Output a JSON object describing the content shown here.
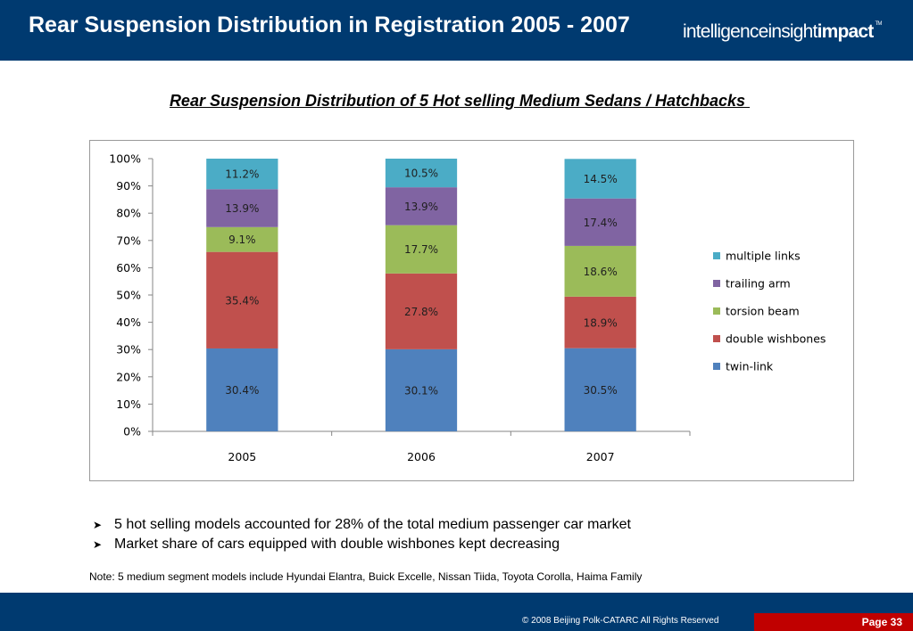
{
  "header": {
    "title": "Rear Suspension Distribution in Registration 2005 - 2007",
    "logo": {
      "part1": "intelligence",
      "part2": "insight",
      "part3": "impact",
      "tm": "TM"
    }
  },
  "colors": {
    "header_bg": "#003a70",
    "page_box": "#c00000",
    "twin_link": "#4f81bd",
    "double_wishbones": "#c0504d",
    "torsion_beam": "#9bbb59",
    "trailing_arm": "#8064a2",
    "multiple_links": "#4bacc6"
  },
  "chart_data": {
    "type": "bar",
    "stacked": true,
    "title": "Rear Suspension Distribution of 5 Hot selling Medium Sedans / Hatchbacks ",
    "categories": [
      "2005",
      "2006",
      "2007"
    ],
    "series": [
      {
        "name": "twin-link",
        "values": [
          30.4,
          30.1,
          30.5
        ],
        "labels": [
          "30.4%",
          "30.1%",
          "30.5%"
        ],
        "color": "#4f81bd"
      },
      {
        "name": "double wishbones",
        "values": [
          35.4,
          27.8,
          18.9
        ],
        "labels": [
          "35.4%",
          "27.8%",
          "18.9%"
        ],
        "color": "#c0504d"
      },
      {
        "name": "torsion beam",
        "values": [
          9.1,
          17.7,
          18.6
        ],
        "labels": [
          "9.1%",
          "17.7%",
          "18.6%"
        ],
        "color": "#9bbb59"
      },
      {
        "name": "trailing arm",
        "values": [
          13.9,
          13.9,
          17.4
        ],
        "labels": [
          "13.9%",
          "13.9%",
          "17.4%"
        ],
        "color": "#8064a2"
      },
      {
        "name": "multiple links",
        "values": [
          11.2,
          10.5,
          14.5
        ],
        "labels": [
          "11.2%",
          "10.5%",
          "14.5%"
        ],
        "color": "#4bacc6"
      }
    ],
    "ylim": [
      0,
      100
    ],
    "yticks": [
      "0%",
      "10%",
      "20%",
      "30%",
      "40%",
      "50%",
      "60%",
      "70%",
      "80%",
      "90%",
      "100%"
    ],
    "legend_order": [
      "multiple links",
      "trailing arm",
      "torsion beam",
      "double wishbones",
      "twin-link"
    ],
    "legend_position": "right",
    "grid": false
  },
  "bullets": [
    "5 hot selling models accounted for 28% of the total medium passenger car market",
    "Market share of cars equipped with double wishbones kept decreasing"
  ],
  "note": "Note: 5 medium segment models include Hyundai Elantra, Buick Excelle, Nissan Tiida, Toyota Corolla, Haima Family",
  "footer": {
    "copyright": "© 2008  Beijing Polk-CATARC  All Rights Reserved",
    "page": "Page 33"
  }
}
